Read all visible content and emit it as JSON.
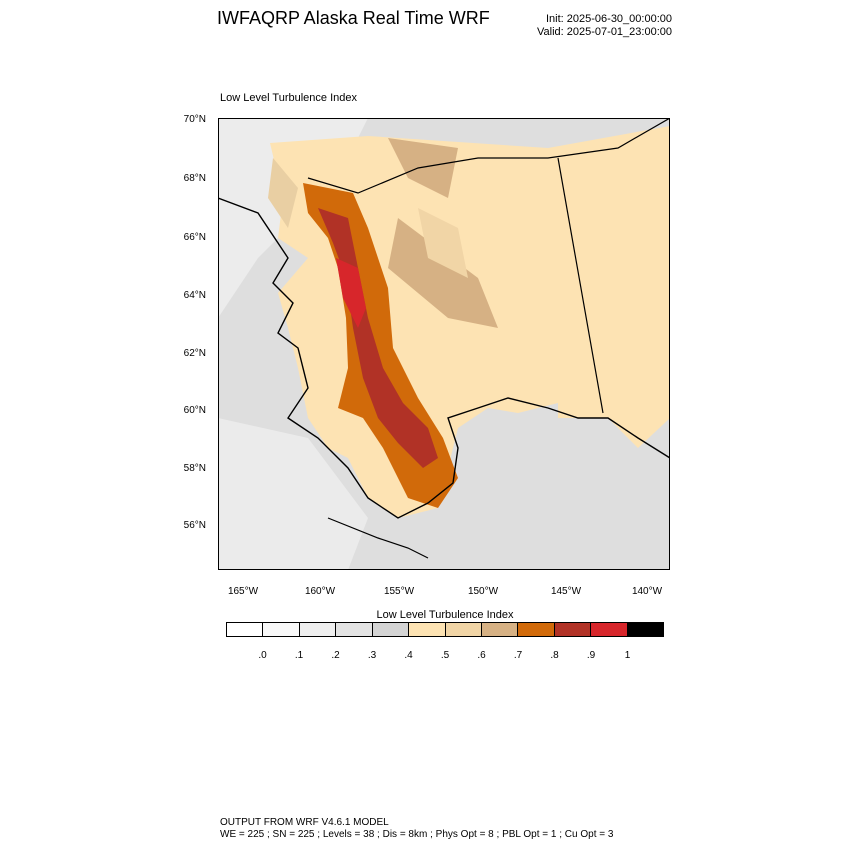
{
  "header": {
    "title": "IWFAQRP Alaska Real Time WRF",
    "init": "Init: 2025-06-30_00:00:00",
    "valid": "Valid: 2025-07-01_23:00:00"
  },
  "map": {
    "field_title": "Low Level Turbulence Index",
    "lat_labels": [
      "70°N",
      "68°N",
      "66°N",
      "64°N",
      "62°N",
      "60°N",
      "58°N",
      "56°N"
    ],
    "lon_labels": [
      "165°W",
      "160°W",
      "155°W",
      "150°W",
      "145°W",
      "140°W"
    ],
    "ocean_color": "#dcdcdc",
    "land_color": "#fde3b3"
  },
  "colorbar": {
    "title": "Low Level Turbulence Index",
    "colors": [
      "#ffffff",
      "#f8f8f8",
      "#efefef",
      "#e3e3e3",
      "#d4d4d4",
      "#fde3b3",
      "#f1d5a6",
      "#d6b184",
      "#d16a0a",
      "#b13226",
      "#d7262b",
      "#000000"
    ],
    "labels": [
      ".0",
      ".1",
      ".2",
      ".3",
      ".4",
      ".5",
      ".6",
      ".7",
      ".8",
      ".9",
      "1"
    ]
  },
  "footer": {
    "line1": "OUTPUT FROM WRF V4.6.1 MODEL",
    "line2": "WE = 225 ; SN = 225 ; Levels = 38 ; Dis = 8km ; Phys Opt = 8 ; PBL Opt = 1 ; Cu Opt = 3"
  }
}
